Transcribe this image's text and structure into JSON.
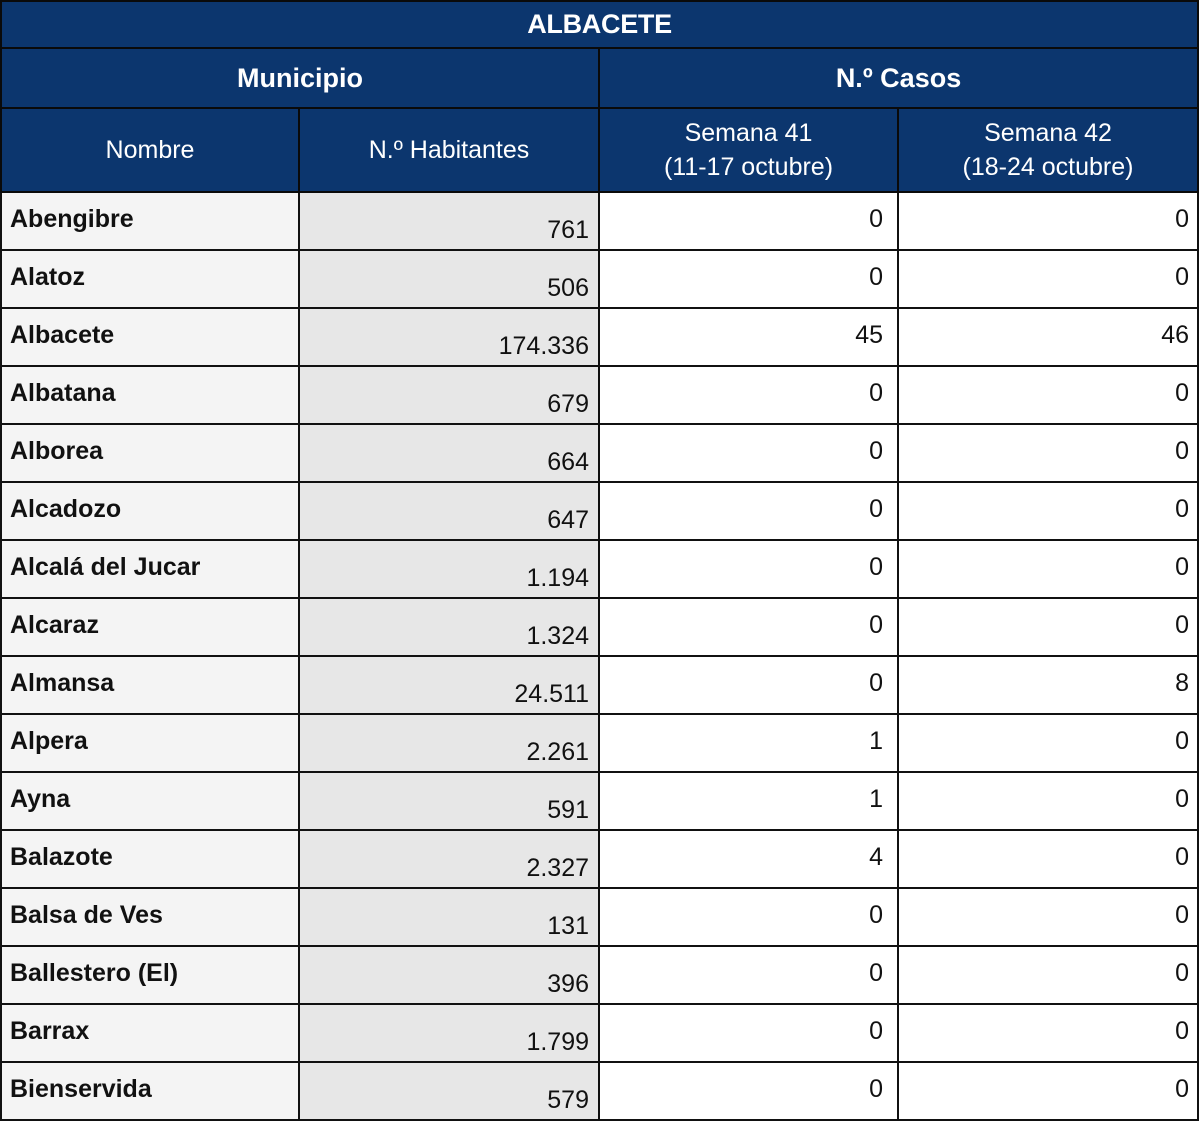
{
  "table": {
    "title": "ALBACETE",
    "group_headers": {
      "municipio": "Municipio",
      "casos": "N.º Casos"
    },
    "column_headers": {
      "nombre": "Nombre",
      "habitantes": "N.º Habitantes",
      "semana41": {
        "line1": "Semana 41",
        "line2": "(11-17 octubre)"
      },
      "semana42": {
        "line1": "Semana 42",
        "line2": "(18-24 octubre)"
      }
    },
    "rows": [
      {
        "nombre": "Abengibre",
        "habitantes": "761",
        "semana41": "0",
        "semana42": "0"
      },
      {
        "nombre": "Alatoz",
        "habitantes": "506",
        "semana41": "0",
        "semana42": "0"
      },
      {
        "nombre": "Albacete",
        "habitantes": "174.336",
        "semana41": "45",
        "semana42": "46"
      },
      {
        "nombre": "Albatana",
        "habitantes": "679",
        "semana41": "0",
        "semana42": "0"
      },
      {
        "nombre": "Alborea",
        "habitantes": "664",
        "semana41": "0",
        "semana42": "0"
      },
      {
        "nombre": "Alcadozo",
        "habitantes": "647",
        "semana41": "0",
        "semana42": "0"
      },
      {
        "nombre": "Alcalá  del Jucar",
        "habitantes": "1.194",
        "semana41": "0",
        "semana42": "0"
      },
      {
        "nombre": "Alcaraz",
        "habitantes": "1.324",
        "semana41": "0",
        "semana42": "0"
      },
      {
        "nombre": "Almansa",
        "habitantes": "24.511",
        "semana41": "0",
        "semana42": "8"
      },
      {
        "nombre": "Alpera",
        "habitantes": "2.261",
        "semana41": "1",
        "semana42": "0"
      },
      {
        "nombre": "Ayna",
        "habitantes": "591",
        "semana41": "1",
        "semana42": "0"
      },
      {
        "nombre": "Balazote",
        "habitantes": "2.327",
        "semana41": "4",
        "semana42": "0"
      },
      {
        "nombre": "Balsa de Ves",
        "habitantes": "131",
        "semana41": "0",
        "semana42": "0"
      },
      {
        "nombre": "Ballestero (El)",
        "habitantes": "396",
        "semana41": "0",
        "semana42": "0"
      },
      {
        "nombre": "Barrax",
        "habitantes": "1.799",
        "semana41": "0",
        "semana42": "0"
      },
      {
        "nombre": "Bienservida",
        "habitantes": "579",
        "semana41": "0",
        "semana42": "0"
      }
    ]
  },
  "colors": {
    "header_bg": "#0c366e",
    "header_text": "#ffffff",
    "name_bg": "#f4f4f4",
    "habitantes_bg": "#e7e7e7",
    "cases_bg": "#ffffff",
    "border": "#111111"
  }
}
